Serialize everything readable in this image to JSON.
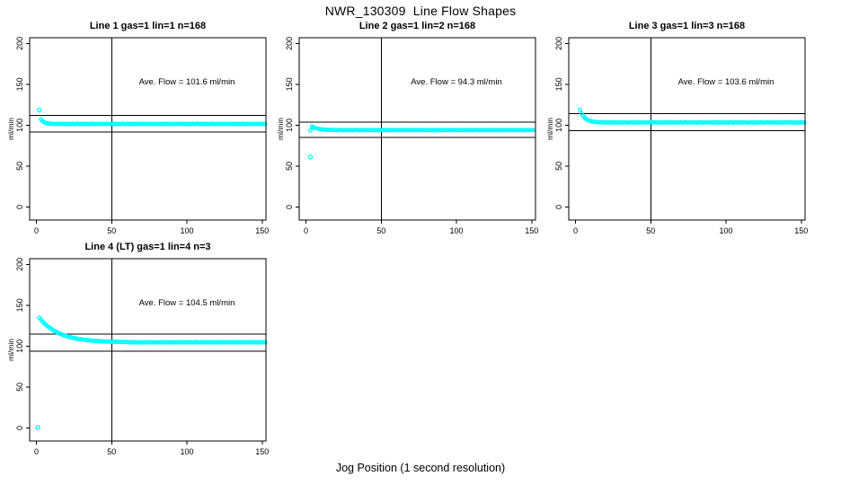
{
  "page": {
    "main_title": "NWR_130309  Line Flow Shapes",
    "x_axis_label": "Jog Position (1 second resolution)",
    "y_axis_label": "ml/min",
    "background_color": "#ffffff",
    "point_color": "#00FFFF",
    "axis_color": "#000000"
  },
  "chart_data": [
    {
      "type": "scatter",
      "title": "Line 1 gas=1 lin=1 n=168",
      "annotation": "Ave. Flow =  101.6  ml/min",
      "ave_flow": 101.6,
      "ref_line_upper": 111.8,
      "ref_line_lower": 91.4,
      "vline_x": 50,
      "xlim": [
        0,
        150
      ],
      "ylim": [
        0,
        200
      ],
      "x_ticks": [
        0,
        50,
        100,
        150
      ],
      "y_ticks": [
        0,
        50,
        100,
        150,
        200
      ],
      "grid": false,
      "outliers": [
        [
          2,
          118.5
        ]
      ],
      "x_start": 3,
      "y": [
        107.3,
        105.2,
        103.8,
        103.0,
        102.4,
        102.1,
        101.9,
        101.7,
        101.6,
        101.6,
        101.5,
        101.6,
        101.4,
        101.5,
        101.7,
        101.5,
        101.3,
        101.6,
        101.5,
        101.4,
        101.5,
        101.6,
        101.4,
        101.5,
        101.7,
        101.5,
        101.3,
        101.6,
        101.5,
        101.4,
        101.5,
        101.6,
        101.4,
        101.5,
        101.7,
        101.5,
        101.3,
        101.6,
        101.5,
        101.4,
        101.5,
        101.6,
        101.4,
        101.5,
        101.7,
        101.5,
        101.3,
        101.6,
        101.5,
        101.4,
        101.5,
        101.6,
        101.4,
        101.5,
        101.7,
        101.5,
        101.3,
        101.6,
        101.5,
        101.4,
        101.5,
        101.6,
        101.4,
        101.5,
        101.7,
        101.5,
        101.3,
        101.6,
        101.5,
        101.4,
        101.5,
        101.6,
        101.4,
        101.5,
        101.7,
        101.5,
        101.3,
        101.6,
        101.5,
        101.4,
        101.5,
        101.6,
        101.4,
        101.5,
        101.7,
        101.5,
        101.3,
        101.6,
        101.5,
        101.4,
        101.5,
        101.6,
        101.4,
        101.5,
        101.7,
        101.5,
        101.3,
        101.6,
        101.5,
        101.4,
        101.5,
        101.6,
        101.4,
        101.5,
        101.7,
        101.5,
        101.3,
        101.6,
        101.5,
        101.4,
        101.5,
        101.6,
        101.4,
        101.5,
        101.7,
        101.5,
        101.3,
        101.6,
        101.5,
        101.4,
        101.5,
        101.6,
        101.4,
        101.5,
        101.7,
        101.5,
        101.3,
        101.6,
        101.5,
        101.4,
        101.5,
        101.6,
        101.4,
        101.5,
        101.7,
        101.5,
        101.3,
        101.6,
        101.5,
        101.4,
        101.5,
        101.6,
        101.4,
        101.5,
        101.7,
        101.5,
        101.3,
        101.6,
        101.5,
        101.4
      ]
    },
    {
      "type": "scatter",
      "title": "Line 2 gas=1 lin=2 n=168",
      "annotation": "Ave. Flow =  94.3  ml/min",
      "ave_flow": 94.3,
      "ref_line_upper": 103.7,
      "ref_line_lower": 84.9,
      "vline_x": 50,
      "xlim": [
        0,
        150
      ],
      "ylim": [
        0,
        200
      ],
      "x_ticks": [
        0,
        50,
        100,
        150
      ],
      "y_ticks": [
        0,
        50,
        100,
        150,
        200
      ],
      "grid": false,
      "outliers": [
        [
          3,
          61.0
        ]
      ],
      "x_start": 3,
      "y": [
        93.5,
        98.5,
        97.5,
        96.7,
        96.1,
        95.7,
        95.3,
        95.0,
        94.8,
        94.6,
        94.5,
        94.4,
        94.3,
        94.2,
        94.2,
        94.1,
        94.0,
        94.1,
        93.9,
        94.0,
        94.2,
        94.0,
        93.8,
        94.1,
        94.0,
        93.9,
        94.0,
        94.1,
        93.9,
        94.0,
        94.2,
        94.0,
        93.8,
        94.1,
        94.0,
        93.9,
        94.0,
        94.1,
        93.9,
        94.0,
        94.2,
        94.0,
        93.8,
        94.1,
        94.0,
        93.9,
        94.0,
        94.1,
        93.9,
        94.0,
        94.2,
        94.0,
        93.8,
        94.1,
        94.0,
        93.9,
        94.0,
        94.1,
        93.9,
        94.0,
        94.2,
        94.0,
        93.8,
        94.1,
        94.0,
        93.9,
        94.0,
        94.1,
        93.9,
        94.0,
        94.2,
        94.0,
        93.8,
        94.1,
        94.0,
        93.9,
        94.0,
        94.1,
        93.9,
        94.0,
        94.2,
        94.0,
        93.8,
        94.1,
        94.0,
        93.9,
        94.0,
        94.1,
        93.9,
        94.0,
        94.2,
        94.0,
        93.8,
        94.1,
        94.0,
        93.9,
        94.0,
        94.1,
        93.9,
        94.0,
        94.2,
        94.0,
        93.8,
        94.1,
        94.0,
        93.9,
        94.0,
        94.1,
        93.9,
        94.0,
        94.2,
        94.0,
        93.8,
        94.1,
        94.0,
        93.9,
        94.0,
        94.1,
        93.9,
        94.0,
        94.2,
        94.0,
        93.8,
        94.1,
        94.0,
        93.9,
        94.0,
        94.1,
        93.9,
        94.0,
        94.2,
        94.0,
        93.8,
        94.1,
        94.0,
        93.9,
        94.0,
        94.1,
        93.9,
        94.0,
        94.2,
        94.0,
        93.8,
        94.1,
        94.0,
        93.9,
        94.0,
        94.1,
        93.9
      ]
    },
    {
      "type": "scatter",
      "title": "Line 3 gas=1 lin=3 n=168",
      "annotation": "Ave. Flow =  103.6  ml/min",
      "ave_flow": 103.6,
      "ref_line_upper": 114.0,
      "ref_line_lower": 93.2,
      "vline_x": 50,
      "xlim": [
        0,
        150
      ],
      "ylim": [
        0,
        200
      ],
      "x_ticks": [
        0,
        50,
        100,
        150
      ],
      "y_ticks": [
        0,
        50,
        100,
        150,
        200
      ],
      "grid": false,
      "outliers": [],
      "x_start": 3,
      "y": [
        118.8,
        114.6,
        111.6,
        109.4,
        107.7,
        106.5,
        105.7,
        105.0,
        104.6,
        104.2,
        104.0,
        103.8,
        103.7,
        103.6,
        103.5,
        103.5,
        103.4,
        103.6,
        103.2,
        103.4,
        103.7,
        103.4,
        103.1,
        103.5,
        103.4,
        103.3,
        103.4,
        103.6,
        103.2,
        103.4,
        103.7,
        103.4,
        103.1,
        103.5,
        103.4,
        103.3,
        103.4,
        103.6,
        103.2,
        103.4,
        103.7,
        103.4,
        103.1,
        103.5,
        103.4,
        103.3,
        103.4,
        103.6,
        103.2,
        103.4,
        103.7,
        103.4,
        103.1,
        103.5,
        103.4,
        103.3,
        103.4,
        103.6,
        103.2,
        103.4,
        103.7,
        103.4,
        103.1,
        103.5,
        103.4,
        103.3,
        103.4,
        103.6,
        103.2,
        103.4,
        103.7,
        103.4,
        103.1,
        103.5,
        103.4,
        103.3,
        103.4,
        103.6,
        103.2,
        103.4,
        103.7,
        103.4,
        103.1,
        103.5,
        103.4,
        103.3,
        103.4,
        103.6,
        103.2,
        103.4,
        103.7,
        103.4,
        103.1,
        103.5,
        103.4,
        103.3,
        103.4,
        103.6,
        103.2,
        103.4,
        103.7,
        103.4,
        103.1,
        103.5,
        103.4,
        103.3,
        103.4,
        103.6,
        103.2,
        103.4,
        103.7,
        103.4,
        103.1,
        103.5,
        103.4,
        103.3,
        103.4,
        103.6,
        103.2,
        103.4,
        103.7,
        103.4,
        103.1,
        103.5,
        103.4,
        103.3,
        103.4,
        103.6,
        103.2,
        103.4,
        103.7,
        103.4,
        103.1,
        103.5,
        103.4,
        103.3,
        103.4,
        103.6,
        103.2,
        103.4,
        103.7,
        103.4,
        103.1,
        103.5,
        103.4,
        103.3,
        103.4,
        103.6,
        103.2,
        103.4
      ]
    },
    {
      "type": "scatter",
      "title": "Line 4 (LT) gas=1 lin=4 n=3",
      "annotation": "Ave. Flow =  104.5  ml/min",
      "ave_flow": 104.5,
      "ref_line_upper": 114.9,
      "ref_line_lower": 94.0,
      "vline_x": 50,
      "xlim": [
        0,
        150
      ],
      "ylim": [
        0,
        200
      ],
      "x_ticks": [
        0,
        50,
        100,
        150
      ],
      "y_ticks": [
        0,
        50,
        100,
        150,
        200
      ],
      "grid": false,
      "outliers": [
        [
          1,
          0.5
        ]
      ],
      "x_start": 2,
      "y": [
        134.7,
        132.5,
        130.4,
        128.5,
        126.8,
        125.1,
        123.6,
        122.2,
        120.9,
        119.7,
        118.6,
        117.6,
        116.6,
        115.7,
        114.9,
        114.2,
        113.5,
        112.8,
        112.2,
        111.7,
        111.1,
        110.7,
        110.2,
        109.8,
        109.4,
        109.1,
        108.8,
        108.5,
        108.2,
        107.9,
        107.7,
        107.5,
        107.3,
        107.1,
        106.9,
        106.7,
        106.6,
        106.4,
        106.3,
        106.2,
        106.1,
        106.0,
        105.9,
        105.8,
        105.7,
        105.6,
        105.6,
        105.5,
        105.4,
        105.4,
        105.3,
        105.3,
        105.2,
        105.2,
        105.2,
        105.1,
        105.1,
        105.1,
        105.0,
        105.0,
        104.7,
        104.8,
        104.6,
        104.7,
        104.9,
        104.7,
        104.5,
        104.8,
        104.7,
        104.6,
        104.7,
        104.8,
        104.6,
        104.7,
        104.9,
        104.7,
        104.5,
        104.8,
        104.7,
        104.6,
        104.7,
        104.8,
        104.6,
        104.7,
        104.9,
        104.7,
        104.5,
        104.8,
        104.7,
        104.6,
        104.7,
        104.8,
        104.6,
        104.7,
        104.9,
        104.7,
        104.5,
        104.8,
        104.7,
        104.6,
        104.7,
        104.8,
        104.6,
        104.7,
        104.9,
        104.7,
        104.5,
        104.8,
        104.7,
        104.6,
        104.7,
        104.8,
        104.6,
        104.7,
        104.9,
        104.7,
        104.5,
        104.8,
        104.7,
        104.6,
        104.7,
        104.8,
        104.6,
        104.7,
        104.9,
        104.7,
        104.5,
        104.8,
        104.7,
        104.6,
        104.7,
        104.8,
        104.6,
        104.7,
        104.9,
        104.7,
        104.5,
        104.8,
        104.7,
        104.6,
        104.7,
        104.8,
        104.6,
        104.7,
        104.9,
        104.7,
        104.5,
        104.8,
        104.7,
        104.6,
        104.7
      ]
    }
  ]
}
